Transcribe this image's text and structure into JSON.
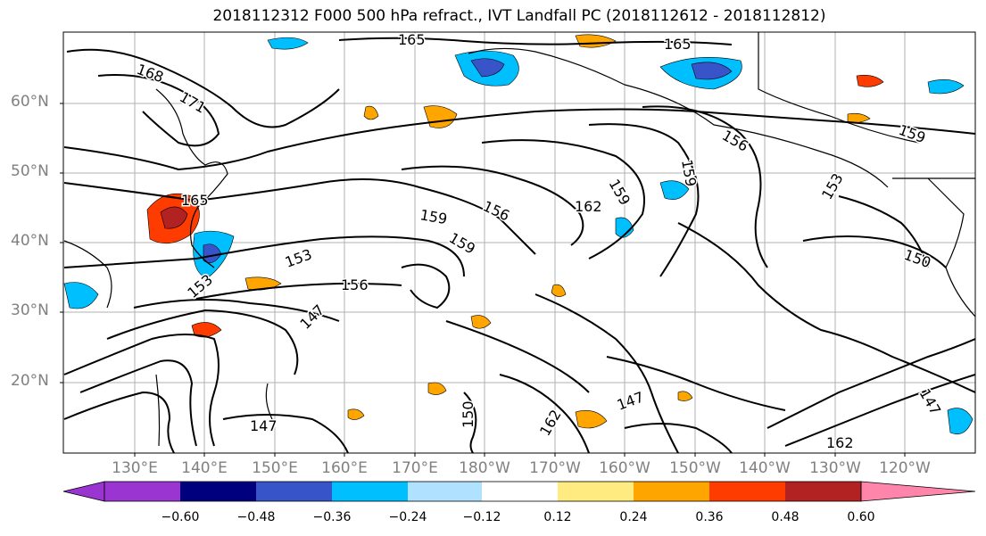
{
  "title": "2018112312 F000 500 hPa refract., IVT Landfall PC (2018112612 - 2018112812)",
  "map": {
    "lat_labels": [
      "60°N",
      "50°N",
      "40°N",
      "30°N",
      "20°N"
    ],
    "lon_labels": [
      "130°E",
      "140°E",
      "150°E",
      "160°E",
      "170°E",
      "180°W",
      "170°W",
      "160°W",
      "150°W",
      "140°W",
      "130°W",
      "120°W"
    ],
    "contour_labels": [
      "165",
      "165",
      "168",
      "171",
      "165",
      "159",
      "156",
      "162",
      "159",
      "156",
      "159",
      "153",
      "159",
      "156",
      "159",
      "153",
      "153",
      "150",
      "147",
      "147",
      "147",
      "162",
      "162",
      "150",
      "147"
    ],
    "land_color": "#ffffff",
    "grid_color": "#b0b0b0"
  },
  "colorbar": {
    "colors": [
      "#9b35d1",
      "#00007f",
      "#3755c9",
      "#00bfff",
      "#b0e2ff",
      "#ffffff",
      "#ffeb80",
      "#ffa500",
      "#ff3c00",
      "#b22222",
      "#ff85aa"
    ],
    "tick_labels": [
      "−0.60",
      "−0.48",
      "−0.36",
      "−0.24",
      "−0.12",
      "0.12",
      "0.24",
      "0.36",
      "0.48",
      "0.60"
    ]
  }
}
